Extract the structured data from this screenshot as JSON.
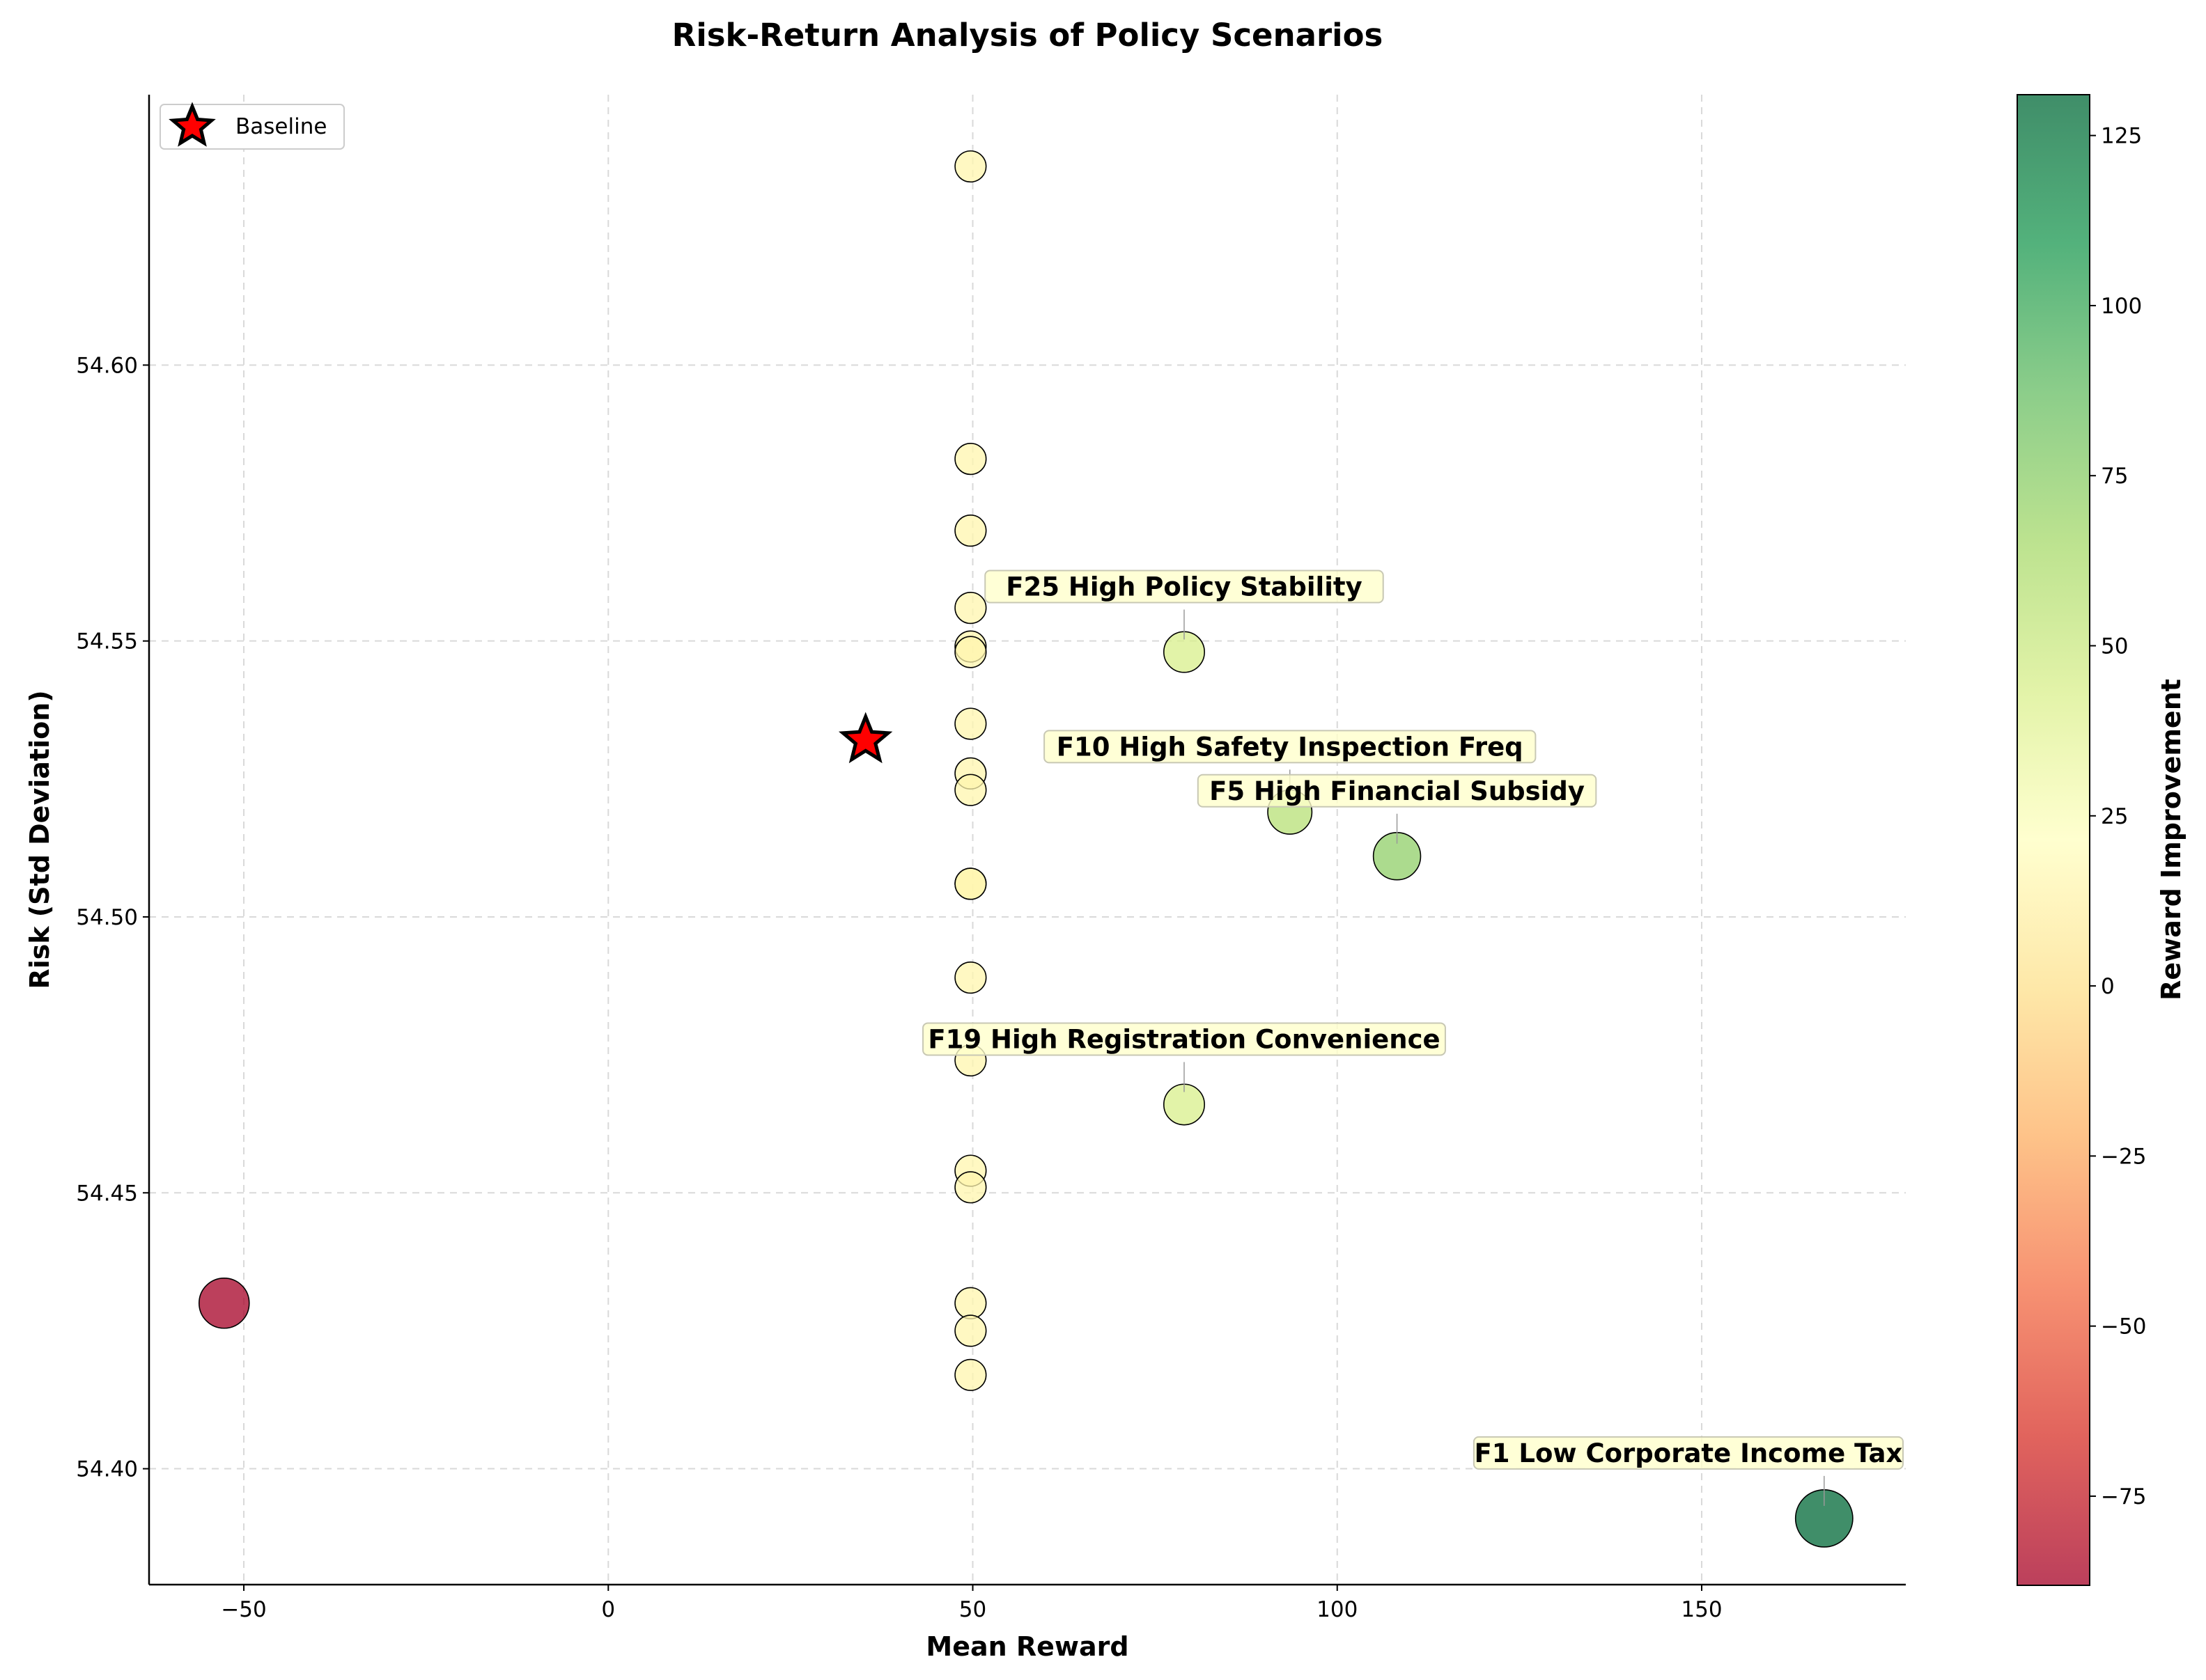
{
  "chart_data": {
    "type": "scatter",
    "title": "Risk-Return Analysis of Policy Scenarios",
    "xlabel": "Mean Reward",
    "ylabel": "Risk (Std Deviation)",
    "xlim": [
      -63,
      178
    ],
    "ylim": [
      54.379,
      54.649
    ],
    "xticks": [
      -50,
      0,
      50,
      100,
      150
    ],
    "xtick_labels": [
      "−50",
      "0",
      "50",
      "100",
      "150"
    ],
    "yticks": [
      54.4,
      54.45,
      54.5,
      54.55,
      54.6
    ],
    "ytick_labels": [
      "54.40",
      "54.45",
      "54.50",
      "54.55",
      "54.60"
    ],
    "grid": true,
    "colorbar": {
      "label": "Reward Improvement",
      "range": [
        -88,
        131
      ],
      "ticks": [
        -75,
        -50,
        -25,
        0,
        25,
        50,
        75,
        100,
        125
      ],
      "tick_labels": [
        "−75",
        "−50",
        "−25",
        "0",
        "25",
        "50",
        "75",
        "100",
        "125"
      ],
      "colormap": [
        "#a50026",
        "#d73027",
        "#f46d43",
        "#fdae61",
        "#fee08b",
        "#ffffbf",
        "#d9ef8b",
        "#a6d96a",
        "#66bd63",
        "#1a9850",
        "#006837"
      ]
    },
    "legend": {
      "position": "top-left",
      "label": "Baseline"
    },
    "baseline": {
      "x": 35.3,
      "y": 54.532
    },
    "points": [
      {
        "x": 49.7,
        "y": 54.636,
        "improvement": 14.4
      },
      {
        "x": 49.7,
        "y": 54.583,
        "improvement": 14.4
      },
      {
        "x": 49.7,
        "y": 54.57,
        "improvement": 14.4
      },
      {
        "x": 49.7,
        "y": 54.556,
        "improvement": 14.4
      },
      {
        "x": 49.7,
        "y": 54.549,
        "improvement": 14.4
      },
      {
        "x": 49.7,
        "y": 54.548,
        "improvement": 14.4
      },
      {
        "x": 49.7,
        "y": 54.535,
        "improvement": 14.4
      },
      {
        "x": 49.7,
        "y": 54.526,
        "improvement": 14.4
      },
      {
        "x": 49.7,
        "y": 54.523,
        "improvement": 14.4
      },
      {
        "x": 49.7,
        "y": 54.506,
        "improvement": 14.4
      },
      {
        "x": 49.7,
        "y": 54.506,
        "improvement": 14.4
      },
      {
        "x": 49.7,
        "y": 54.489,
        "improvement": 14.4
      },
      {
        "x": 49.7,
        "y": 54.474,
        "improvement": 14.4
      },
      {
        "x": 49.7,
        "y": 54.454,
        "improvement": 14.4
      },
      {
        "x": 49.7,
        "y": 54.451,
        "improvement": 14.4
      },
      {
        "x": 49.7,
        "y": 54.43,
        "improvement": 14.4
      },
      {
        "x": 49.7,
        "y": 54.425,
        "improvement": 14.4
      },
      {
        "x": 49.7,
        "y": 54.417,
        "improvement": 14.4
      },
      {
        "x": 79.0,
        "y": 54.548,
        "improvement": 43.7
      },
      {
        "x": 93.5,
        "y": 54.519,
        "improvement": 58.2
      },
      {
        "x": 108.2,
        "y": 54.511,
        "improvement": 72.9
      },
      {
        "x": 79.0,
        "y": 54.466,
        "improvement": 43.7
      },
      {
        "x": -52.7,
        "y": 54.43,
        "improvement": -88.0
      },
      {
        "x": 166.8,
        "y": 54.391,
        "improvement": 131.5
      }
    ],
    "annotations": [
      {
        "text": "F25 High Policy Stability",
        "x": 79.0,
        "y": 54.548
      },
      {
        "text": "F10 High Safety Inspection Freq",
        "x": 93.5,
        "y": 54.519
      },
      {
        "text": "F5 High Financial Subsidy",
        "x": 108.2,
        "y": 54.511
      },
      {
        "text": "F19 High Registration Convenience",
        "x": 79.0,
        "y": 54.466
      },
      {
        "text": "F1 Low Corporate Income Tax",
        "x": 166.8,
        "y": 54.391
      }
    ]
  }
}
